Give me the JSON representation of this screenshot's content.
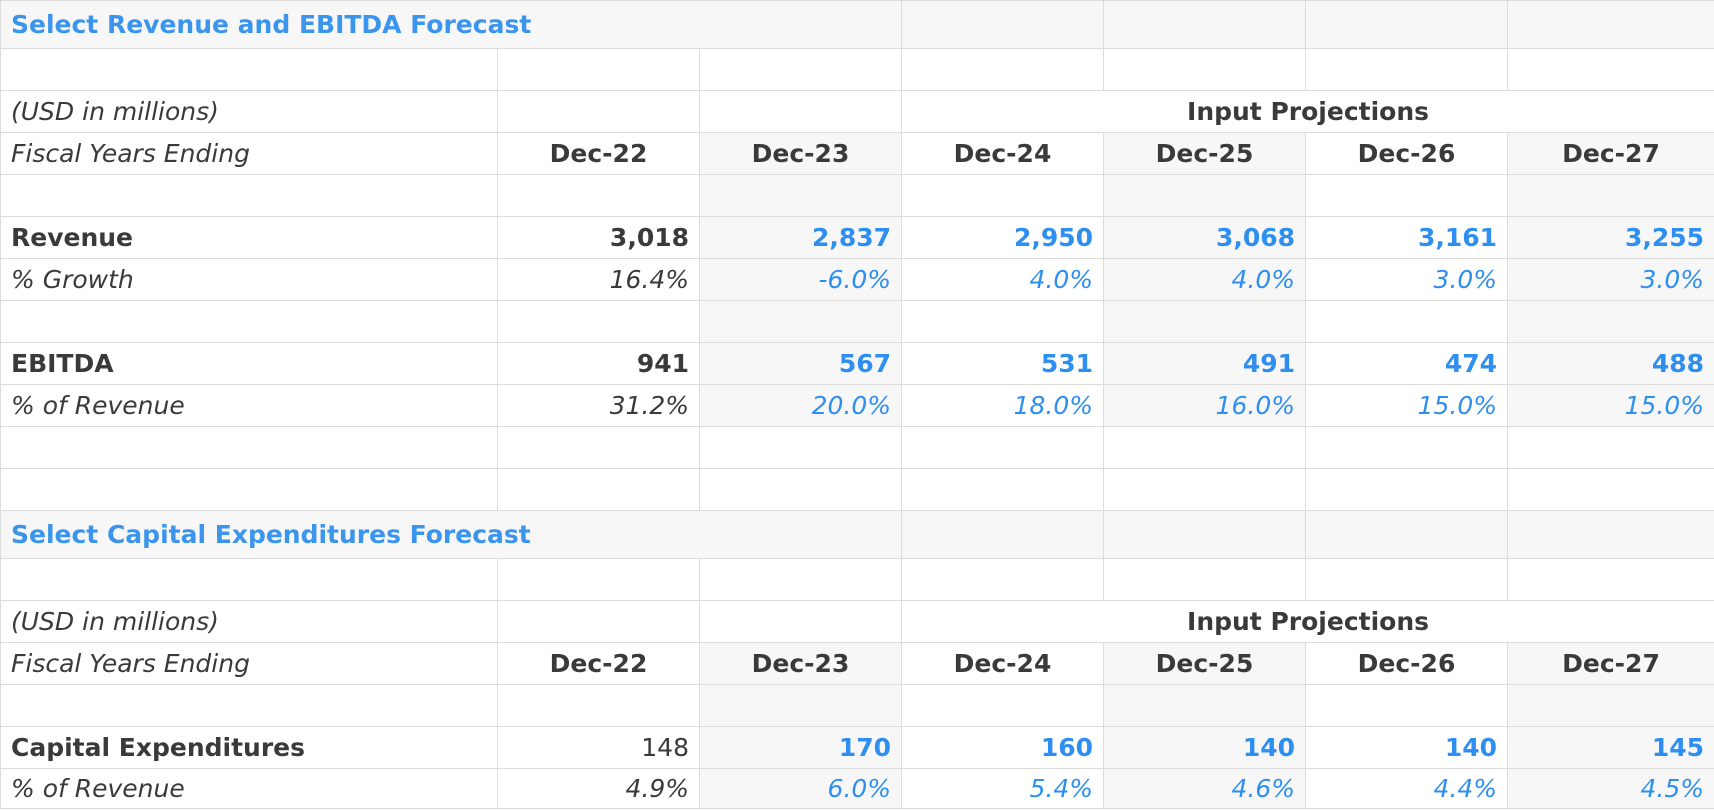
{
  "columns": [
    "Dec-22",
    "Dec-23",
    "Dec-24",
    "Dec-25",
    "Dec-26",
    "Dec-27"
  ],
  "revenue_section": {
    "title": "Select Revenue and EBITDA Forecast",
    "units": "(USD in millions)",
    "projection_header": "Input Projections",
    "fiscal_label": "Fiscal Years Ending",
    "rows": {
      "revenue": {
        "label": "Revenue",
        "values": [
          "3,018",
          "2,837",
          "2,950",
          "3,068",
          "3,161",
          "3,255"
        ]
      },
      "growth": {
        "label": "% Growth",
        "values": [
          "16.4%",
          "-6.0%",
          "4.0%",
          "4.0%",
          "3.0%",
          "3.0%"
        ]
      },
      "ebitda": {
        "label": "EBITDA",
        "values": [
          "941",
          "567",
          "531",
          "491",
          "474",
          "488"
        ]
      },
      "ebitda_margin": {
        "label": "% of Revenue",
        "values": [
          "31.2%",
          "20.0%",
          "18.0%",
          "16.0%",
          "15.0%",
          "15.0%"
        ]
      }
    }
  },
  "capex_section": {
    "title": "Select Capital Expenditures Forecast",
    "units": "(USD in millions)",
    "projection_header": "Input Projections",
    "fiscal_label": "Fiscal Years Ending",
    "rows": {
      "capex": {
        "label": "Capital Expenditures",
        "values": [
          "148",
          "170",
          "160",
          "140",
          "140",
          "145"
        ]
      },
      "capex_pct": {
        "label": "% of Revenue",
        "values": [
          "4.9%",
          "6.0%",
          "5.4%",
          "4.6%",
          "4.4%",
          "4.5%"
        ]
      }
    }
  },
  "colors": {
    "title": "#3b95ec",
    "input_value": "#2e8ff0",
    "text": "#3a3a3a",
    "grid_line": "#dcdcdc",
    "shade": "#f7f7f7"
  }
}
